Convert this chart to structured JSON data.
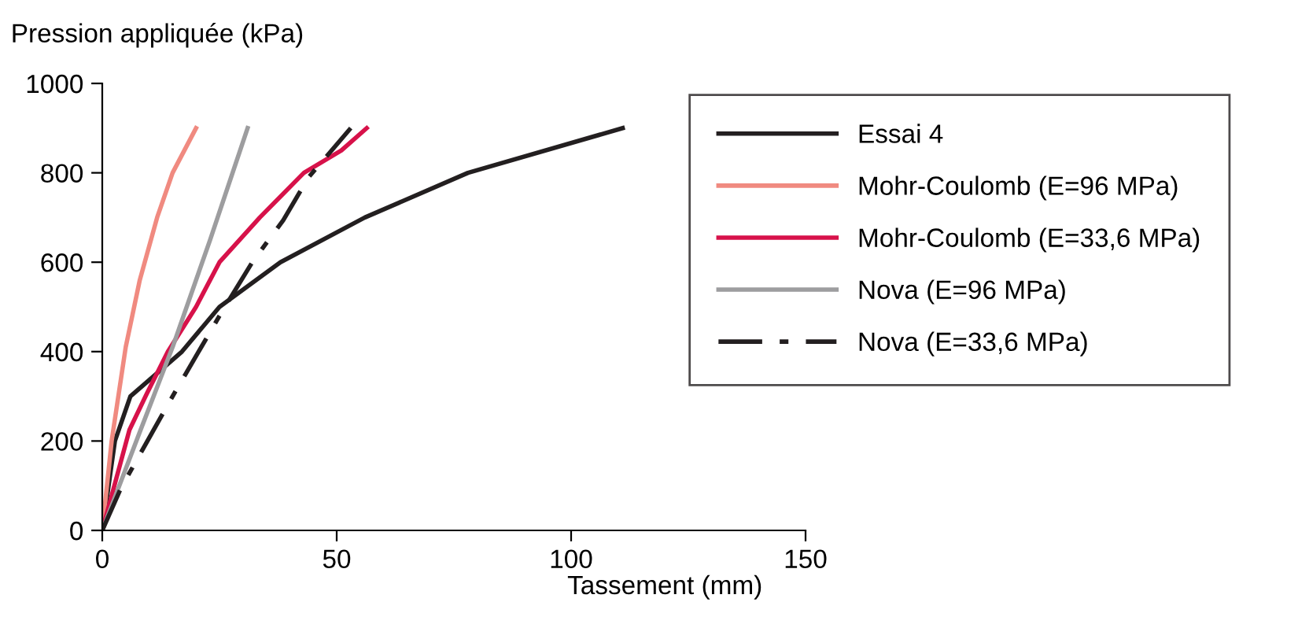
{
  "chart_data": {
    "type": "line",
    "xlabel": "Tassement (mm)",
    "ylabel": "Pression appliquée (kPa)",
    "xlim": [
      0,
      150
    ],
    "xticks": [
      0,
      50,
      100,
      150
    ],
    "ylim": [
      0,
      1000
    ],
    "yticks": [
      0,
      200,
      400,
      600,
      800,
      1000
    ],
    "grid": false,
    "legend": "right",
    "marker": "none",
    "series": [
      {
        "name": "Essai 4",
        "color": "#231f20",
        "line_style": "solid",
        "x": [
          0,
          2.7,
          6,
          17,
          25,
          38,
          56,
          78,
          111
        ],
        "values": [
          0,
          200,
          300,
          400,
          500,
          600,
          700,
          800,
          900
        ]
      },
      {
        "name": "Mohr-Coulomb (E=96 MPa)",
        "color": "#f08a80",
        "line_style": "solid",
        "x": [
          0,
          2,
          5,
          8,
          11.7,
          15,
          20
        ],
        "values": [
          0,
          200,
          410,
          560,
          700,
          800,
          900
        ]
      },
      {
        "name": "Mohr-Coulomb (E=33,6 MPa)",
        "color": "#d7124a",
        "line_style": "solid",
        "x": [
          0,
          5.8,
          9.5,
          14,
          20,
          25,
          33.6,
          43,
          51,
          56.4
        ],
        "values": [
          0,
          225,
          306,
          400,
          500,
          600,
          700,
          800,
          850,
          900
        ]
      },
      {
        "name": "Nova (E=96 MPa)",
        "color": "#9d9d9f",
        "line_style": "solid",
        "x": [
          0,
          8,
          15,
          23,
          31
        ],
        "values": [
          0,
          220,
          410,
          650,
          900
        ]
      },
      {
        "name": "Nova (E=33,6 MPa)",
        "color": "#231f20",
        "line_style": "dashdot",
        "x": [
          0,
          4,
          15,
          25,
          32,
          38.6,
          44,
          53
        ],
        "values": [
          0,
          95,
          300,
          480,
          600,
          694,
          790,
          900
        ]
      }
    ]
  }
}
